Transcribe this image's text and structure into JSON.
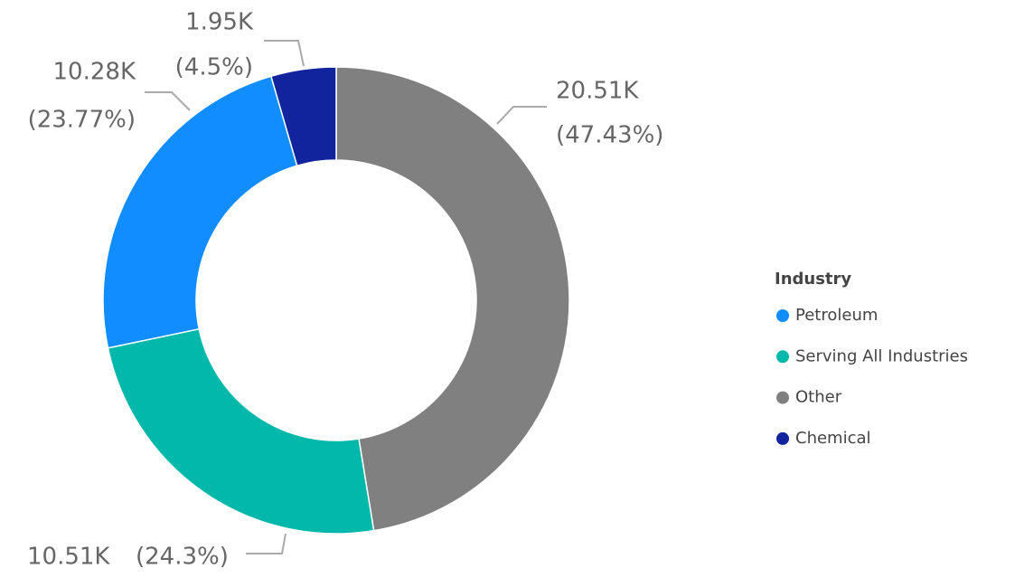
{
  "chart_data": {
    "type": "donut",
    "categories": [
      "Other",
      "Serving All Industries",
      "Petroleum",
      "Chemical"
    ],
    "values": [
      20510,
      10510,
      10280,
      1950
    ],
    "value_labels": [
      "20.51K",
      "10.51K",
      "10.28K",
      "1.95K"
    ],
    "percents": [
      47.43,
      24.3,
      23.77,
      4.5
    ],
    "percent_labels": [
      "(47.43%)",
      "(24.3%)",
      "(23.77%)",
      "(4.5%)"
    ],
    "colors": [
      "#808080",
      "#01B8AA",
      "#118DFF",
      "#12239E"
    ],
    "legend": {
      "title": "Industry",
      "entries": [
        "Petroleum",
        "Serving All Industries",
        "Other",
        "Chemical"
      ],
      "position": "right"
    }
  }
}
